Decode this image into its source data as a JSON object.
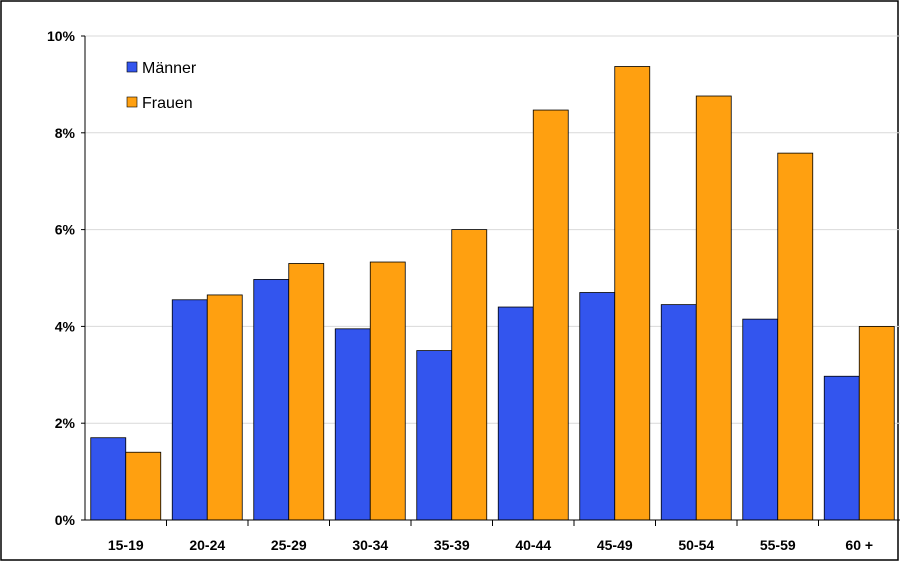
{
  "chart_data": {
    "type": "bar",
    "categories": [
      "15-19",
      "20-24",
      "25-29",
      "30-34",
      "35-39",
      "40-44",
      "45-49",
      "50-54",
      "55-59",
      "60 +"
    ],
    "series": [
      {
        "name": "Männer",
        "color": "#3355ee",
        "values": [
          1.7,
          4.55,
          4.97,
          3.95,
          3.5,
          4.4,
          4.7,
          4.45,
          4.15,
          2.97
        ]
      },
      {
        "name": "Frauen",
        "color": "#ffa010",
        "values": [
          1.4,
          4.65,
          5.3,
          5.33,
          6.0,
          8.47,
          9.37,
          8.76,
          7.58,
          4.0
        ]
      }
    ],
    "yticks": [
      "0%",
      "2%",
      "4%",
      "6%",
      "8%",
      "10%"
    ],
    "ylim": [
      0,
      10
    ],
    "yunit": "%",
    "grid": true,
    "legend": "top-left"
  }
}
